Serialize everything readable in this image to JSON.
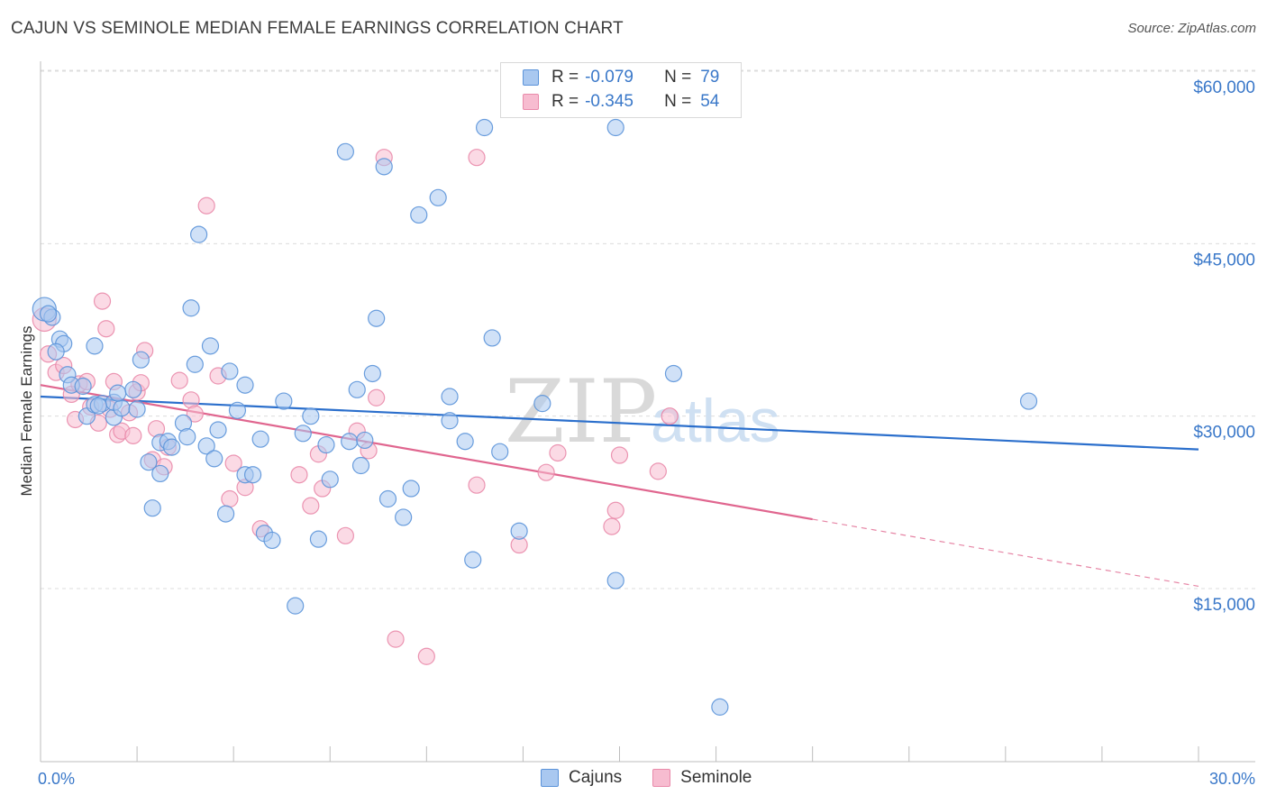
{
  "header": {
    "title": "CAJUN VS SEMINOLE MEDIAN FEMALE EARNINGS CORRELATION CHART",
    "source": "Source: ZipAtlas.com"
  },
  "watermark": {
    "part1": "ZIP",
    "part2": "atlas"
  },
  "legend": {
    "cajun": {
      "r_label": "R =",
      "r_value": "-0.079",
      "n_label": "N =",
      "n_value": "79"
    },
    "seminole": {
      "r_label": "R =",
      "r_value": "-0.345",
      "n_label": "N =",
      "n_value": "54"
    }
  },
  "bottom_legend": {
    "cajun_label": "Cajuns",
    "seminole_label": "Seminole"
  },
  "colors": {
    "cajun_fill": "#a9c8f0",
    "cajun_stroke": "#5b93d9",
    "cajun_line": "#2b6fcc",
    "seminole_fill": "#f7bcd0",
    "seminole_stroke": "#e98aaa",
    "seminole_line": "#e0668f",
    "axis_label": "#3a78c9",
    "grid": "#dcdcdc"
  },
  "chart_data": {
    "type": "scatter",
    "title": "CAJUN VS SEMINOLE MEDIAN FEMALE EARNINGS CORRELATION CHART",
    "xlabel": "",
    "ylabel": "Median Female Earnings",
    "xlim": [
      0,
      30
    ],
    "ylim": [
      1000,
      62500
    ],
    "x_tick_labels": [
      {
        "value": 0,
        "label": "0.0%"
      },
      {
        "value": 30,
        "label": "30.0%"
      }
    ],
    "y_ticks": [
      {
        "value": 15000,
        "label": "$15,000"
      },
      {
        "value": 30000,
        "label": "$30,000"
      },
      {
        "value": 45000,
        "label": "$45,000"
      },
      {
        "value": 60000,
        "label": "$60,000"
      }
    ],
    "series": [
      {
        "name": "Cajuns",
        "trend": {
          "x_start": 0,
          "y_start": 31700,
          "x_end": 30,
          "y_end": 27100,
          "dashed_from": null
        },
        "points": [
          [
            0.1,
            39300
          ],
          [
            0.3,
            38600
          ],
          [
            0.5,
            36700
          ],
          [
            0.6,
            36300
          ],
          [
            0.7,
            33600
          ],
          [
            0.8,
            32700
          ],
          [
            1.1,
            32600
          ],
          [
            1.4,
            36100
          ],
          [
            1.2,
            30000
          ],
          [
            1.4,
            31000
          ],
          [
            1.6,
            31100
          ],
          [
            1.9,
            29900
          ],
          [
            1.9,
            31200
          ],
          [
            2.1,
            30700
          ],
          [
            2.4,
            32300
          ],
          [
            2.5,
            30600
          ],
          [
            2.6,
            34900
          ],
          [
            2.8,
            26000
          ],
          [
            2.9,
            22000
          ],
          [
            3.1,
            25000
          ],
          [
            3.1,
            27700
          ],
          [
            3.3,
            27800
          ],
          [
            3.4,
            27300
          ],
          [
            3.7,
            29400
          ],
          [
            3.8,
            28200
          ],
          [
            3.9,
            39400
          ],
          [
            4.0,
            34500
          ],
          [
            4.1,
            45800
          ],
          [
            4.4,
            36100
          ],
          [
            4.3,
            27400
          ],
          [
            4.5,
            26300
          ],
          [
            4.6,
            28800
          ],
          [
            4.8,
            21500
          ],
          [
            4.9,
            33900
          ],
          [
            5.1,
            30500
          ],
          [
            5.3,
            32700
          ],
          [
            5.3,
            24900
          ],
          [
            5.5,
            24900
          ],
          [
            5.7,
            28000
          ],
          [
            5.8,
            19800
          ],
          [
            6.0,
            19200
          ],
          [
            6.3,
            31300
          ],
          [
            6.6,
            13500
          ],
          [
            6.8,
            28500
          ],
          [
            7.0,
            30000
          ],
          [
            7.2,
            19300
          ],
          [
            7.4,
            27500
          ],
          [
            7.5,
            24500
          ],
          [
            7.9,
            53000
          ],
          [
            8.0,
            27800
          ],
          [
            8.2,
            32300
          ],
          [
            8.3,
            25700
          ],
          [
            8.4,
            27900
          ],
          [
            8.6,
            33700
          ],
          [
            8.7,
            38500
          ],
          [
            8.9,
            51700
          ],
          [
            9.0,
            22800
          ],
          [
            9.4,
            21200
          ],
          [
            9.6,
            23700
          ],
          [
            9.8,
            47500
          ],
          [
            10.3,
            49000
          ],
          [
            10.6,
            29600
          ],
          [
            10.6,
            31700
          ],
          [
            11.0,
            27800
          ],
          [
            11.2,
            17500
          ],
          [
            11.5,
            55100
          ],
          [
            11.7,
            36800
          ],
          [
            11.9,
            26900
          ],
          [
            12.4,
            20000
          ],
          [
            13.0,
            31100
          ],
          [
            14.9,
            55100
          ],
          [
            14.9,
            15700
          ],
          [
            16.4,
            33700
          ],
          [
            17.6,
            4700
          ],
          [
            25.6,
            31300
          ],
          [
            0.2,
            38900
          ],
          [
            0.4,
            35600
          ],
          [
            1.5,
            30900
          ],
          [
            2.0,
            32000
          ]
        ]
      },
      {
        "name": "Seminole",
        "trend": {
          "x_start": 0,
          "y_start": 32700,
          "x_end": 30,
          "y_end": 15200,
          "dashed_from": 20
        },
        "points": [
          [
            0.1,
            38400
          ],
          [
            0.2,
            35400
          ],
          [
            0.4,
            33800
          ],
          [
            0.6,
            34400
          ],
          [
            0.8,
            31900
          ],
          [
            0.9,
            29700
          ],
          [
            1.0,
            32800
          ],
          [
            1.2,
            33000
          ],
          [
            1.3,
            30800
          ],
          [
            1.5,
            29400
          ],
          [
            1.6,
            40000
          ],
          [
            1.7,
            37600
          ],
          [
            1.8,
            30600
          ],
          [
            1.9,
            33000
          ],
          [
            2.0,
            28400
          ],
          [
            2.1,
            28700
          ],
          [
            2.3,
            30300
          ],
          [
            2.4,
            28300
          ],
          [
            2.5,
            32100
          ],
          [
            2.6,
            32900
          ],
          [
            2.7,
            35700
          ],
          [
            2.9,
            26200
          ],
          [
            3.0,
            28900
          ],
          [
            3.2,
            25600
          ],
          [
            3.3,
            27300
          ],
          [
            3.6,
            33100
          ],
          [
            3.9,
            31400
          ],
          [
            4.0,
            30200
          ],
          [
            4.3,
            48300
          ],
          [
            4.6,
            33500
          ],
          [
            4.9,
            22800
          ],
          [
            5.0,
            25900
          ],
          [
            5.3,
            23800
          ],
          [
            5.7,
            20200
          ],
          [
            6.7,
            24900
          ],
          [
            7.0,
            22200
          ],
          [
            7.2,
            26700
          ],
          [
            7.3,
            23700
          ],
          [
            7.9,
            19600
          ],
          [
            8.2,
            28700
          ],
          [
            8.5,
            27000
          ],
          [
            8.7,
            31600
          ],
          [
            8.9,
            52500
          ],
          [
            9.2,
            10600
          ],
          [
            10.0,
            9100
          ],
          [
            11.3,
            52500
          ],
          [
            11.3,
            24000
          ],
          [
            12.4,
            18800
          ],
          [
            13.1,
            25100
          ],
          [
            13.4,
            26800
          ],
          [
            14.9,
            21800
          ],
          [
            14.8,
            20400
          ],
          [
            15.0,
            26600
          ],
          [
            16.0,
            25200
          ]
        ]
      }
    ],
    "extra_seminole_point": [
      16.3,
      30000
    ]
  }
}
